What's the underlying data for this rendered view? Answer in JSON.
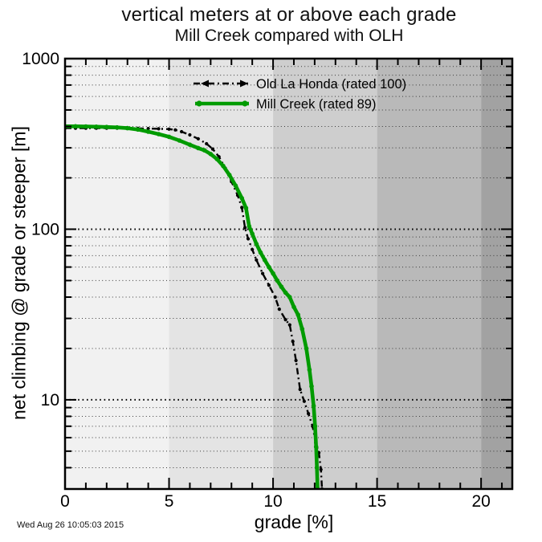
{
  "title": "vertical meters at or above each grade",
  "subtitle": "Mill Creek compared with OLH",
  "timestamp": "Wed Aug 26 10:05:03 2015",
  "chart_data": {
    "type": "line",
    "title": "vertical meters at or above each grade",
    "subtitle": "Mill Creek compared with OLH",
    "xlabel": "grade [%]",
    "ylabel": "net climbing @ grade or steeper [m]",
    "grid": "dotted horizontal at every log minor and major tick",
    "legend_position": "top-center inside plot",
    "x_axis": {
      "min": 0,
      "max": 21.5,
      "major_ticks": [
        0,
        5,
        10,
        15,
        20
      ],
      "minor_tick_step": 1
    },
    "y_axis": {
      "scale": "log",
      "min": 3,
      "max": 1000,
      "major_ticks": [
        1000,
        100,
        10
      ],
      "minor_gridlines": [
        900,
        800,
        700,
        600,
        500,
        400,
        300,
        200,
        90,
        80,
        70,
        60,
        50,
        40,
        30,
        20,
        9,
        8,
        7,
        6,
        5,
        4
      ]
    },
    "background_bands": [
      {
        "from": 0,
        "to": 5,
        "color": "#f1f1f1"
      },
      {
        "from": 5,
        "to": 10,
        "color": "#e4e4e4"
      },
      {
        "from": 10,
        "to": 15,
        "color": "#cecece"
      },
      {
        "from": 15,
        "to": 20,
        "color": "#b9b9b9"
      },
      {
        "from": 20,
        "to": 21.5,
        "color": "#a2a2a2"
      }
    ],
    "series": [
      {
        "name": "Old La Honda (rated 100)",
        "color": "#000000",
        "style": "dashed-with-markers",
        "points": [
          [
            0,
            391
          ],
          [
            0.5,
            391
          ],
          [
            1,
            391
          ],
          [
            1.5,
            391
          ],
          [
            2,
            391
          ],
          [
            2.5,
            391
          ],
          [
            3,
            390
          ],
          [
            3.5,
            390
          ],
          [
            4,
            389
          ],
          [
            4.5,
            388
          ],
          [
            5,
            386
          ],
          [
            5.3,
            382
          ],
          [
            5.6,
            373
          ],
          [
            6,
            357
          ],
          [
            6.4,
            339
          ],
          [
            6.8,
            317
          ],
          [
            7.1,
            295
          ],
          [
            7.4,
            266
          ],
          [
            7.7,
            228
          ],
          [
            8,
            190
          ],
          [
            8.3,
            158
          ],
          [
            8.5,
            134
          ],
          [
            8.65,
            102
          ],
          [
            8.8,
            88
          ],
          [
            9,
            76
          ],
          [
            9.2,
            66
          ],
          [
            9.5,
            55
          ],
          [
            9.8,
            47
          ],
          [
            10.1,
            40
          ],
          [
            10.3,
            34
          ],
          [
            10.6,
            29.5
          ],
          [
            10.8,
            27.5
          ],
          [
            10.95,
            22
          ],
          [
            11.1,
            17
          ],
          [
            11.3,
            11.5
          ],
          [
            11.5,
            9.8
          ],
          [
            11.7,
            8.3
          ],
          [
            11.9,
            7
          ],
          [
            12.05,
            5.6
          ],
          [
            12.2,
            4.9
          ],
          [
            12.3,
            3.9
          ],
          [
            12.35,
            3
          ]
        ]
      },
      {
        "name": "Mill Creek (rated 89)",
        "color": "#009b00",
        "style": "solid-thick-with-markers",
        "points": [
          [
            0,
            401
          ],
          [
            0.5,
            401
          ],
          [
            1,
            400
          ],
          [
            1.5,
            399
          ],
          [
            2,
            397
          ],
          [
            2.5,
            395
          ],
          [
            3,
            391
          ],
          [
            3.5,
            384
          ],
          [
            4,
            373
          ],
          [
            4.5,
            361
          ],
          [
            5,
            348
          ],
          [
            5.5,
            331
          ],
          [
            6,
            313
          ],
          [
            6.4,
            299
          ],
          [
            6.7,
            290
          ],
          [
            7,
            276
          ],
          [
            7.3,
            258
          ],
          [
            7.6,
            235
          ],
          [
            7.9,
            208
          ],
          [
            8.2,
            180
          ],
          [
            8.5,
            152
          ],
          [
            8.7,
            133
          ],
          [
            8.85,
            104
          ],
          [
            9,
            94
          ],
          [
            9.2,
            82
          ],
          [
            9.4,
            73
          ],
          [
            9.6,
            66
          ],
          [
            9.8,
            60
          ],
          [
            10,
            55
          ],
          [
            10.2,
            50
          ],
          [
            10.4,
            46
          ],
          [
            10.6,
            42.5
          ],
          [
            10.8,
            40
          ],
          [
            11,
            35
          ],
          [
            11.2,
            31.5
          ],
          [
            11.4,
            26
          ],
          [
            11.6,
            20
          ],
          [
            11.75,
            15
          ],
          [
            11.85,
            12
          ],
          [
            11.95,
            9.2
          ],
          [
            12.02,
            7
          ],
          [
            12.07,
            5.3
          ],
          [
            12.11,
            4
          ],
          [
            12.14,
            3
          ]
        ]
      }
    ]
  }
}
